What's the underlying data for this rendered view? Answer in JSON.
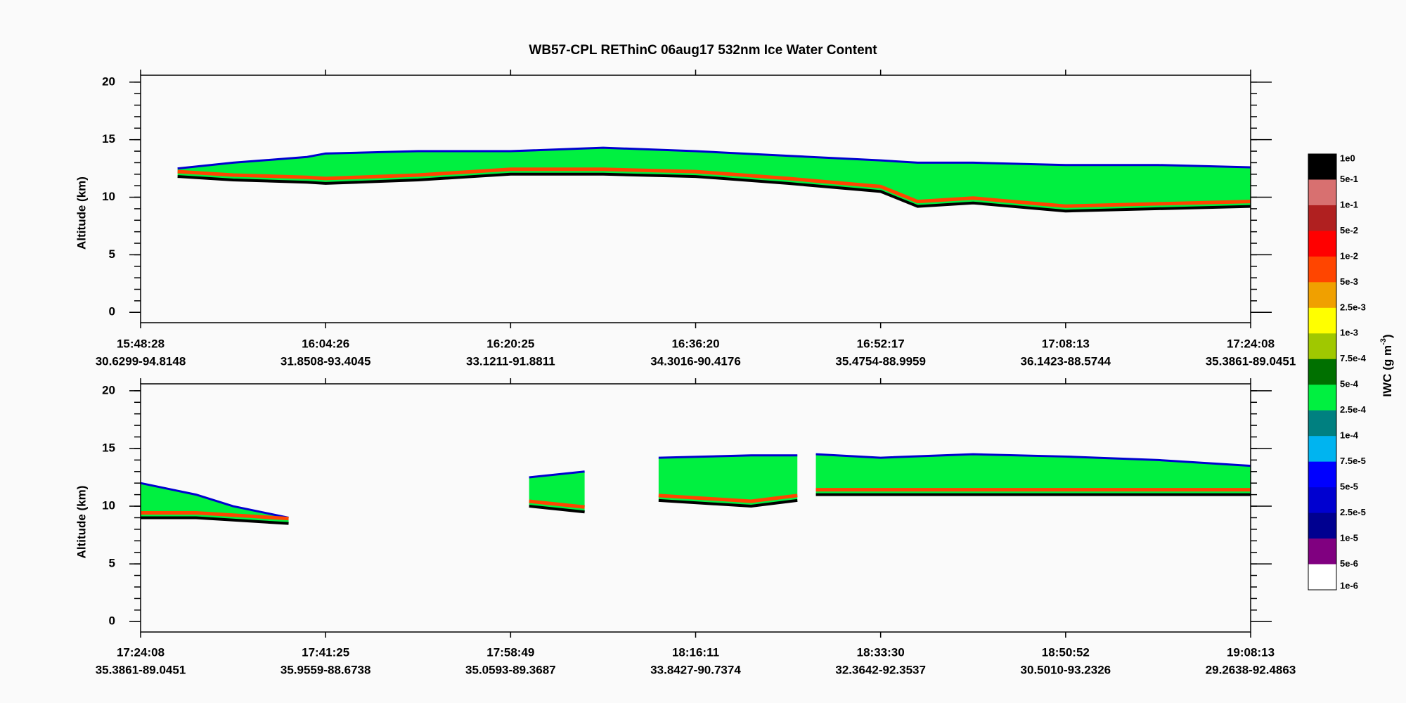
{
  "title": "WB57-CPL  REThinC  06aug17  532nm Ice Water Content",
  "chart_data": [
    {
      "type": "area",
      "y_label": "Altitude (km)",
      "xlim": [
        0,
        6
      ],
      "ylim": [
        -0.9,
        20.6
      ],
      "yticks": [
        0,
        5,
        10,
        15,
        20
      ],
      "y_minor_step": 1,
      "xticks": [
        {
          "value": 0,
          "label": "15:48:28",
          "location": "30.6299-94.8148"
        },
        {
          "value": 1,
          "label": "16:04:26",
          "location": "31.8508-93.4045"
        },
        {
          "value": 2,
          "label": "16:20:25",
          "location": "33.1211-91.8811"
        },
        {
          "value": 3,
          "label": "16:36:20",
          "location": "34.3016-90.4176"
        },
        {
          "value": 4,
          "label": "16:52:17",
          "location": "35.4754-88.9959"
        },
        {
          "value": 5,
          "label": "17:08:13",
          "location": "36.1423-88.5744"
        },
        {
          "value": 6,
          "label": "17:24:08",
          "location": "35.3861-89.0451"
        }
      ],
      "x": [
        0.2,
        0.5,
        0.9,
        1.0,
        1.5,
        2.0,
        2.5,
        3.0,
        3.5,
        4.0,
        4.2,
        4.5,
        5.0,
        5.5,
        6.0
      ],
      "top": [
        12.5,
        13.0,
        13.5,
        13.8,
        14.0,
        14.0,
        14.3,
        14.0,
        13.6,
        13.2,
        13.0,
        13.0,
        12.8,
        12.8,
        12.6
      ],
      "base": [
        11.8,
        11.5,
        11.3,
        11.2,
        11.5,
        12.0,
        12.0,
        11.8,
        11.2,
        10.5,
        9.2,
        9.5,
        8.8,
        9.0,
        9.2
      ],
      "fill_color": "#00f040",
      "top_color": "#0000d0",
      "mid_color": "#ff4500",
      "base_color": "#000000"
    },
    {
      "type": "area",
      "y_label": "Altitude (km)",
      "xlim": [
        0,
        6
      ],
      "ylim": [
        -0.9,
        20.6
      ],
      "yticks": [
        0,
        5,
        10,
        15,
        20
      ],
      "y_minor_step": 1,
      "xticks": [
        {
          "value": 0,
          "label": "17:24:08",
          "location": "35.3861-89.0451"
        },
        {
          "value": 1,
          "label": "17:41:25",
          "location": "35.9559-88.6738"
        },
        {
          "value": 2,
          "label": "17:58:49",
          "location": "35.0593-89.3687"
        },
        {
          "value": 3,
          "label": "18:16:11",
          "location": "33.8427-90.7374"
        },
        {
          "value": 4,
          "label": "18:33:30",
          "location": "32.3642-92.3537"
        },
        {
          "value": 5,
          "label": "18:50:52",
          "location": "30.5010-93.2326"
        },
        {
          "value": 6,
          "label": "19:08:13",
          "location": "29.2638-92.4863"
        }
      ],
      "x": [
        0.0,
        0.3,
        0.5,
        0.8,
        null,
        2.1,
        2.4,
        null,
        2.8,
        3.3,
        3.55,
        null,
        3.65,
        4.0,
        4.5,
        5.0,
        5.5,
        6.0
      ],
      "top": [
        12.0,
        11.0,
        10.0,
        9.0,
        null,
        12.5,
        13.0,
        null,
        14.2,
        14.4,
        14.4,
        null,
        14.5,
        14.2,
        14.5,
        14.3,
        14.0,
        13.5
      ],
      "base": [
        9.0,
        9.0,
        8.8,
        8.5,
        null,
        10.0,
        9.5,
        null,
        10.5,
        10.0,
        10.5,
        null,
        11.0,
        11.0,
        11.0,
        11.0,
        11.0,
        11.0
      ],
      "fill_color": "#00f040",
      "top_color": "#0000d0",
      "mid_color": "#ff4500",
      "base_color": "#000000"
    }
  ],
  "colorbar": {
    "label": "IWC (g m",
    "superscript": "-3",
    "suffix": ")",
    "boundaries": [
      {
        "value": 1,
        "label": "1e0"
      },
      {
        "value": 0.5,
        "label": "5e-1"
      },
      {
        "value": 0.1,
        "label": "1e-1"
      },
      {
        "value": 0.05,
        "label": "5e-2"
      },
      {
        "value": 0.01,
        "label": "1e-2"
      },
      {
        "value": 0.005,
        "label": "5e-3"
      },
      {
        "value": 0.0025,
        "label": "2.5e-3"
      },
      {
        "value": 0.001,
        "label": "1e-3"
      },
      {
        "value": 0.00075,
        "label": "7.5e-4"
      },
      {
        "value": 0.0005,
        "label": "5e-4"
      },
      {
        "value": 0.00025,
        "label": "2.5e-4"
      },
      {
        "value": 0.0001,
        "label": "1e-4"
      },
      {
        "value": 7.5e-05,
        "label": "7.5e-5"
      },
      {
        "value": 5e-05,
        "label": "5e-5"
      },
      {
        "value": 2.5e-05,
        "label": "2.5e-5"
      },
      {
        "value": 1e-05,
        "label": "1e-5"
      },
      {
        "value": 5e-06,
        "label": "5e-6"
      },
      {
        "value": 1e-06,
        "label": "1e-6"
      }
    ],
    "colors": [
      "#000000",
      "#d87070",
      "#b02020",
      "#ff0000",
      "#ff4500",
      "#f0a000",
      "#ffff00",
      "#a0c800",
      "#007000",
      "#00f040",
      "#008080",
      "#00b4f0",
      "#0000ff",
      "#0000d0",
      "#000090",
      "#800080",
      "#ffffff"
    ]
  }
}
